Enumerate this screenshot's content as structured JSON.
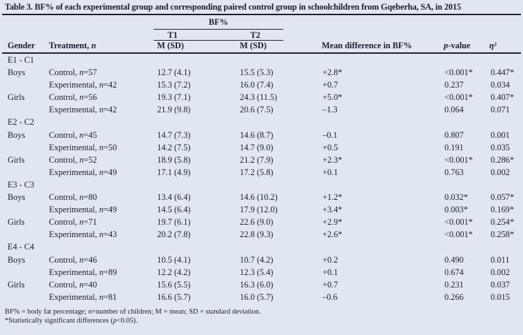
{
  "title": "Table 3. BF% of each experimental group and corresponding paired control group in schoolchildren from Gqeberha, SA, in 2015",
  "colors": {
    "background": "#e0e7f1",
    "text": "#1b1e2e",
    "rule": "#191c2a"
  },
  "header": {
    "bf_group_label": "BF%",
    "t1_label": "T1",
    "t2_label": "T2",
    "columns": {
      "gender": "Gender",
      "treatment": "Treatment, n",
      "t1_msd": "M (SD)",
      "t2_msd": "M (SD)",
      "mean_diff": "Mean difference in BF%",
      "p_value": "p-value",
      "eta_sq": "η²"
    }
  },
  "table": {
    "sections": [
      {
        "label": "E1 - C1",
        "rows": [
          {
            "gender": "Boys",
            "treatment": "Control, n=57",
            "t1": "12.7 (4.1)",
            "t2": "15.5 (5.3)",
            "diff": "+2.8*",
            "p": "<0.001*",
            "eta2": "0.447*"
          },
          {
            "gender": "",
            "treatment": "Experimental, n=42",
            "t1": "15.3 (7.2)",
            "t2": "16.0 (7.4)",
            "diff": "+0.7",
            "p": "0.237",
            "eta2": "0.034"
          },
          {
            "gender": "Girls",
            "treatment": "Control, n=56",
            "t1": "19.3 (7.1)",
            "t2": "24.3 (11.5)",
            "diff": "+5.0*",
            "p": "<0.001*",
            "eta2": "0.407*"
          },
          {
            "gender": "",
            "treatment": "Experimental, n=42",
            "t1": "21.9 (9.8)",
            "t2": "20.6 (7.5)",
            "diff": "–1.3",
            "p": "0.064",
            "eta2": "0.071"
          }
        ]
      },
      {
        "label": "E2 - C2",
        "rows": [
          {
            "gender": "Boys",
            "treatment": "Control, n=45",
            "t1": "14.7 (7.3)",
            "t2": "14.6 (8.7)",
            "diff": "–0.1",
            "p": "0.807",
            "eta2": "0.001"
          },
          {
            "gender": "",
            "treatment": "Experimental, n=50",
            "t1": "14.2 (7.5)",
            "t2": "14.7 (9.0)",
            "diff": "+0.5",
            "p": "0.191",
            "eta2": "0.035"
          },
          {
            "gender": "Girls",
            "treatment": "Control, n=52",
            "t1": "18.9 (5.8)",
            "t2": "21.2 (7.9)",
            "diff": "+2.3*",
            "p": "<0.001*",
            "eta2": "0.286*"
          },
          {
            "gender": "",
            "treatment": "Experimental, n=49",
            "t1": "17.1 (4.9)",
            "t2": "17.2 (5.8)",
            "diff": "+0.1",
            "p": "0.763",
            "eta2": "0.002"
          }
        ]
      },
      {
        "label": "E3 - C3",
        "rows": [
          {
            "gender": "Boys",
            "treatment": "Control, n=80",
            "t1": "13.4 (6.4)",
            "t2": "14.6 (10.2)",
            "diff": "+1.2*",
            "p": "0.032*",
            "eta2": "0.057*"
          },
          {
            "gender": "",
            "treatment": "Experimental, n=49",
            "t1": "14.5 (6.4)",
            "t2": "17.9 (12.0)",
            "diff": "+3.4*",
            "p": "0.003*",
            "eta2": "0.169*"
          },
          {
            "gender": "Girls",
            "treatment": "Control, n=71",
            "t1": "19.7 (6.1)",
            "t2": "22.6 (9.0)",
            "diff": "+2.9*",
            "p": "<0.001*",
            "eta2": "0.254*"
          },
          {
            "gender": "",
            "treatment": "Experimental, n=43",
            "t1": "20.2 (7.8)",
            "t2": "22.8 (9.3)",
            "diff": "+2.6*",
            "p": "<0.001*",
            "eta2": "0.258*"
          }
        ]
      },
      {
        "label": "E4 - C4",
        "rows": [
          {
            "gender": "Boys",
            "treatment": "Control, n=46",
            "t1": "10.5 (4.1)",
            "t2": "10.7 (4.2)",
            "diff": "+0.2",
            "p": "0.490",
            "eta2": "0.011"
          },
          {
            "gender": "",
            "treatment": "Experimental, n=89",
            "t1": "12.2 (4.2)",
            "t2": "12.3 (5.4)",
            "diff": "+0.1",
            "p": "0.674",
            "eta2": "0.002"
          },
          {
            "gender": "Girls",
            "treatment": "Control, n=40",
            "t1": "15.6 (5.5)",
            "t2": "16.3 (6.0)",
            "diff": "+0.7",
            "p": "0.231",
            "eta2": "0.037"
          },
          {
            "gender": "",
            "treatment": "Experimental, n=81",
            "t1": "16.6 (5.7)",
            "t2": "16.0 (5.7)",
            "diff": "–0.6",
            "p": "0.266",
            "eta2": "0.015"
          }
        ]
      }
    ]
  },
  "footnotes": [
    "BF% = body fat percentage; n=number of children; M = mean; SD = standard deviation.",
    "*Statistically significant differences (p<0.05)."
  ]
}
